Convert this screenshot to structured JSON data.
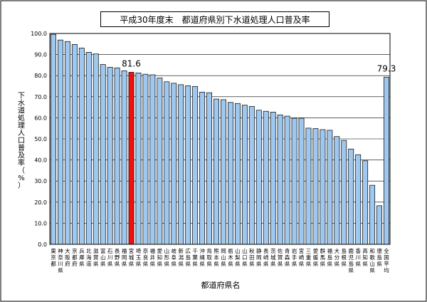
{
  "chart_data": {
    "type": "bar",
    "title": "平成30年度末　都道府県別下水道処理人口普及率",
    "xlabel": "都道府県名",
    "ylabel": "下水道処理人口普及率（%）",
    "ylim": [
      0,
      100
    ],
    "yticks": [
      "0.0",
      "10.0",
      "20.0",
      "30.0",
      "40.0",
      "50.0",
      "60.0",
      "70.0",
      "80.0",
      "90.0",
      "100.0"
    ],
    "grid": true,
    "bar_color": "#9ec8ef",
    "highlight_color": "#ee1111",
    "highlight_index": 11,
    "categories": [
      "東京都",
      "神奈川県",
      "大阪府",
      "京都府",
      "兵庫県",
      "北海道",
      "滋賀県",
      "富山県",
      "石川県",
      "長野県",
      "福岡県",
      "宮城県",
      "埼玉県",
      "奈良県",
      "福井県",
      "愛知県",
      "山形県",
      "岐阜県",
      "新潟県",
      "広島県",
      "千葉県",
      "沖縄県",
      "鳥取県",
      "熊本県",
      "岡山県",
      "栃木県",
      "山梨県",
      "山口県",
      "秋田県",
      "静岡県",
      "長崎県",
      "茨城県",
      "佐賀県",
      "青森県",
      "岩手県",
      "宮崎県",
      "三重県",
      "愛媛県",
      "群馬県",
      "福島県",
      "大分県",
      "島根県",
      "鹿児島県",
      "香川県",
      "高知県",
      "和歌山県",
      "徳島県",
      "全国平均"
    ],
    "values": [
      99.6,
      96.9,
      96.2,
      94.8,
      93.1,
      91.1,
      90.3,
      85.3,
      84.0,
      83.7,
      82.3,
      81.6,
      81.3,
      80.7,
      80.4,
      78.9,
      77.1,
      76.4,
      75.7,
      75.2,
      74.9,
      72.2,
      71.9,
      68.9,
      68.6,
      67.3,
      66.8,
      66.0,
      65.4,
      63.6,
      63.1,
      62.7,
      61.4,
      60.8,
      59.8,
      59.8,
      55.1,
      54.9,
      54.4,
      54.1,
      51.1,
      49.3,
      45.2,
      42.5,
      39.6,
      28.0,
      18.3,
      79.3
    ],
    "data_labels": [
      {
        "index": 11,
        "text": "81.6"
      },
      {
        "index": 47,
        "text": "79.3"
      }
    ]
  }
}
